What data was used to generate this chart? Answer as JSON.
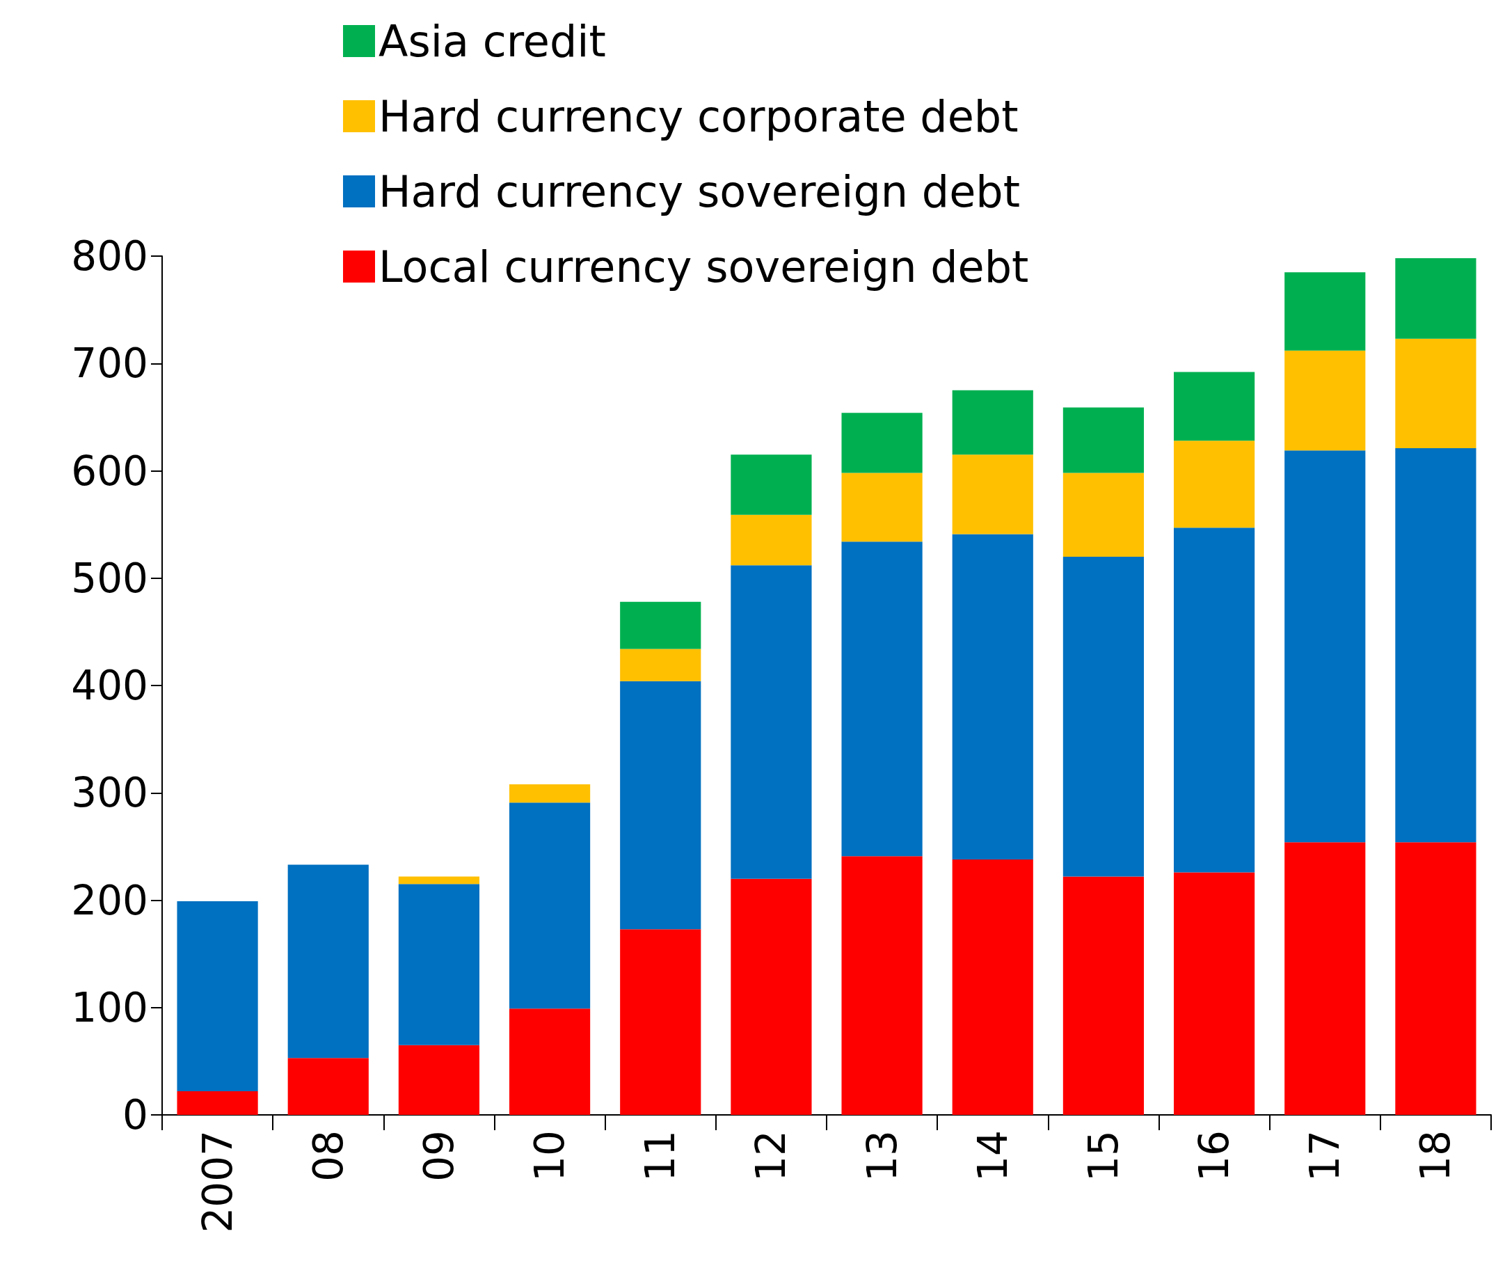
{
  "chart_data": {
    "type": "bar",
    "stacked": true,
    "categories": [
      "2007",
      "08",
      "09",
      "10",
      "11",
      "12",
      "13",
      "14",
      "15",
      "16",
      "17",
      "18"
    ],
    "series": [
      {
        "name": "Local currency sovereign debt",
        "color": "#ff0000",
        "values": [
          22,
          53,
          65,
          99,
          173,
          220,
          241,
          238,
          222,
          226,
          254,
          254
        ]
      },
      {
        "name": "Hard currency sovereign debt",
        "color": "#0070c0",
        "values": [
          177,
          180,
          150,
          192,
          231,
          292,
          293,
          303,
          298,
          321,
          365,
          367
        ]
      },
      {
        "name": "Hard currency corporate debt",
        "color": "#ffc000",
        "values": [
          null,
          null,
          7,
          17,
          30,
          47,
          64,
          74,
          78,
          81,
          93,
          102
        ]
      },
      {
        "name": "Asia credit",
        "color": "#00b050",
        "values": [
          null,
          null,
          null,
          null,
          44,
          56,
          56,
          60,
          61,
          64,
          73,
          75
        ]
      }
    ],
    "ylim": [
      0,
      800
    ],
    "yticks": [
      0,
      100,
      200,
      300,
      400,
      500,
      600,
      700,
      800
    ],
    "grid": false,
    "legend": "top"
  }
}
